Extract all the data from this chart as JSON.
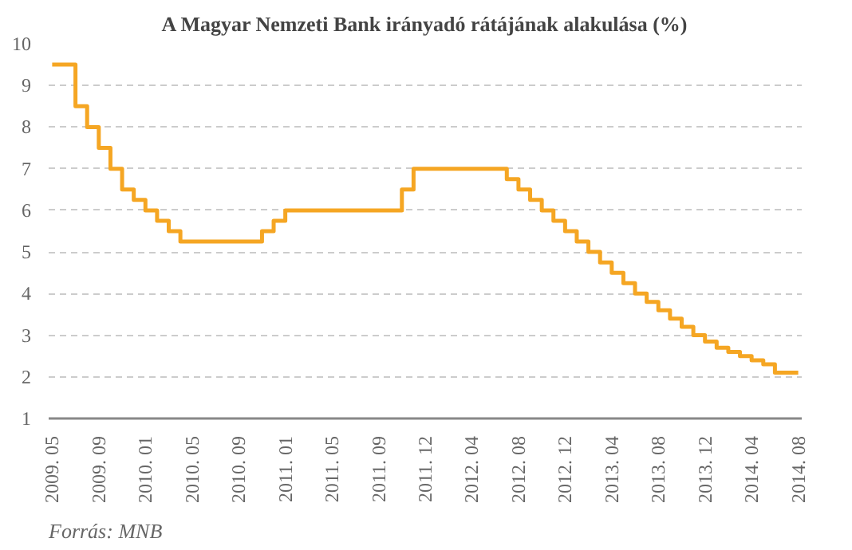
{
  "chart_data": {
    "type": "step",
    "title": "A Magyar Nemzeti Bank irányadó rátájának alakulása (%)",
    "categories": [
      "2009. 05",
      null,
      null,
      null,
      "2009. 09",
      null,
      null,
      null,
      "2010. 01",
      null,
      null,
      null,
      "2010. 05",
      null,
      null,
      null,
      "2010. 09",
      null,
      null,
      null,
      "2011. 01",
      null,
      null,
      null,
      "2011. 05",
      null,
      null,
      null,
      "2011. 09",
      null,
      null,
      null,
      "2011. 12",
      null,
      null,
      null,
      "2012. 04",
      null,
      null,
      null,
      "2012. 08",
      null,
      null,
      null,
      "2012. 12",
      null,
      null,
      null,
      "2013. 04",
      null,
      null,
      null,
      "2013. 08",
      null,
      null,
      null,
      "2013. 12",
      null,
      null,
      null,
      "2014. 04",
      null,
      null,
      null,
      "2014. 08"
    ],
    "series": [
      {
        "color": "#f5a623",
        "values": [
          9.5,
          9.5,
          8.5,
          8.0,
          7.5,
          7.0,
          6.5,
          6.25,
          6.0,
          5.75,
          5.5,
          5.25,
          5.25,
          5.25,
          5.25,
          5.25,
          5.25,
          5.25,
          5.5,
          5.75,
          6.0,
          6.0,
          6.0,
          6.0,
          6.0,
          6.0,
          6.0,
          6.0,
          6.0,
          6.0,
          6.5,
          7.0,
          7.0,
          7.0,
          7.0,
          7.0,
          7.0,
          7.0,
          7.0,
          6.75,
          6.5,
          6.25,
          6.0,
          5.75,
          5.5,
          5.25,
          5.0,
          4.75,
          4.5,
          4.25,
          4.0,
          3.8,
          3.6,
          3.4,
          3.2,
          3.0,
          2.85,
          2.7,
          2.6,
          2.5,
          2.4,
          2.3,
          2.1,
          2.1,
          2.1
        ]
      }
    ],
    "ylim": [
      1,
      10
    ],
    "yticks": [
      1,
      2,
      3,
      4,
      5,
      6,
      7,
      8,
      9,
      10
    ],
    "grid": "y",
    "annotations": [
      "Forrás: MNB"
    ]
  }
}
